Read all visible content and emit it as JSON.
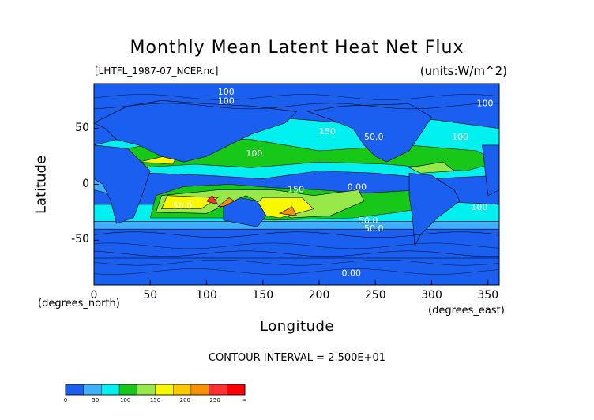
{
  "chart_data": {
    "type": "heatmap",
    "title": "Monthly Mean Latent Heat Net Flux",
    "file_label": "[LHTFL_1987-07_NCEP.nc]",
    "units_label": "(units:W/m^2)",
    "xlabel": "Longitude",
    "xlabel_sub": "(degrees_east)",
    "ylabel": "Latitude",
    "ylabel_sub": "(degrees_north)",
    "xlim": [
      0,
      360
    ],
    "ylim": [
      -90,
      90
    ],
    "x_ticks": [
      0,
      50,
      100,
      150,
      200,
      250,
      300,
      350
    ],
    "y_ticks": [
      50,
      0,
      -50
    ],
    "contour_interval_text": "CONTOUR INTERVAL = 2.500E+01",
    "contour_labels": [
      "100",
      "100",
      "50.0",
      "150",
      "100",
      "50.0",
      "100",
      "150",
      "50.0",
      "100",
      "0.00",
      "50.0",
      "100",
      "0.00"
    ],
    "colorbar": {
      "levels": [
        "0",
        "50",
        "100",
        "150",
        "200",
        "250",
        "∞"
      ],
      "colors": [
        "#1a5ff0",
        "#3fb0ff",
        "#00f0f0",
        "#18c818",
        "#98e84a",
        "#f8f800",
        "#f8c800",
        "#f89000",
        "#ff3030",
        "#ff0000"
      ]
    },
    "grid": false
  }
}
